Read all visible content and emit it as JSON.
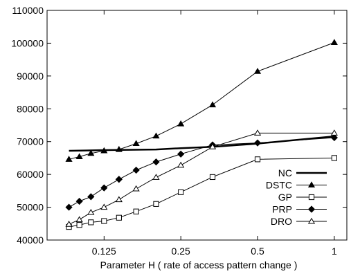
{
  "chart_data": {
    "type": "line",
    "xlabel": "Parameter H ( rate of access pattern change )",
    "ylabel": "",
    "x_scale": "log2",
    "xlim": [
      0.0747,
      1.12
    ],
    "ylim": [
      40000,
      110000
    ],
    "x_ticks": [
      {
        "value": 0.125,
        "label": "0.125"
      },
      {
        "value": 0.25,
        "label": "0.25"
      },
      {
        "value": 0.5,
        "label": "0.5"
      },
      {
        "value": 1,
        "label": "1"
      }
    ],
    "y_ticks": [
      {
        "value": 40000,
        "label": "40000"
      },
      {
        "value": 50000,
        "label": "50000"
      },
      {
        "value": 60000,
        "label": "60000"
      },
      {
        "value": 70000,
        "label": "70000"
      },
      {
        "value": 80000,
        "label": "80000"
      },
      {
        "value": 90000,
        "label": "90000"
      },
      {
        "value": 100000,
        "label": "100000"
      },
      {
        "value": 110000,
        "label": "110000"
      }
    ],
    "grid": false,
    "legend_position": "bottom-right",
    "series": [
      {
        "name": "NC",
        "marker": "none",
        "line_width": 2.5,
        "points": [
          [
            0.091,
            67200
          ],
          [
            0.125,
            67400
          ],
          [
            0.2,
            67600
          ],
          [
            0.25,
            68000
          ],
          [
            0.333,
            68400
          ],
          [
            0.5,
            69400
          ],
          [
            1,
            71600
          ]
        ]
      },
      {
        "name": "DSTC",
        "marker": "triangle-filled",
        "line_width": 1,
        "points": [
          [
            0.091,
            64600
          ],
          [
            0.1,
            65400
          ],
          [
            0.111,
            66400
          ],
          [
            0.125,
            67200
          ],
          [
            0.143,
            67600
          ],
          [
            0.167,
            69400
          ],
          [
            0.2,
            71700
          ],
          [
            0.25,
            75400
          ],
          [
            0.333,
            81200
          ],
          [
            0.5,
            91400
          ],
          [
            1,
            100200
          ]
        ]
      },
      {
        "name": "GP",
        "marker": "square-open",
        "line_width": 1,
        "points": [
          [
            0.091,
            44000
          ],
          [
            0.1,
            44600
          ],
          [
            0.111,
            45400
          ],
          [
            0.125,
            45800
          ],
          [
            0.143,
            46800
          ],
          [
            0.167,
            48700
          ],
          [
            0.2,
            51000
          ],
          [
            0.25,
            54600
          ],
          [
            0.333,
            59200
          ],
          [
            0.5,
            64600
          ],
          [
            1,
            65000
          ]
        ]
      },
      {
        "name": "PRP",
        "marker": "diamond-filled",
        "line_width": 1,
        "points": [
          [
            0.091,
            50000
          ],
          [
            0.1,
            51800
          ],
          [
            0.111,
            53200
          ],
          [
            0.125,
            55900
          ],
          [
            0.143,
            58500
          ],
          [
            0.167,
            61300
          ],
          [
            0.2,
            63800
          ],
          [
            0.25,
            66200
          ],
          [
            0.333,
            69000
          ],
          [
            0.5,
            69600
          ],
          [
            1,
            71200
          ]
        ]
      },
      {
        "name": "DRO",
        "marker": "triangle-open",
        "line_width": 1,
        "points": [
          [
            0.091,
            44800
          ],
          [
            0.1,
            46200
          ],
          [
            0.111,
            48400
          ],
          [
            0.125,
            50000
          ],
          [
            0.143,
            52300
          ],
          [
            0.167,
            55600
          ],
          [
            0.2,
            59100
          ],
          [
            0.25,
            62800
          ],
          [
            0.333,
            68400
          ],
          [
            0.5,
            72600
          ],
          [
            1,
            72600
          ]
        ]
      }
    ]
  }
}
